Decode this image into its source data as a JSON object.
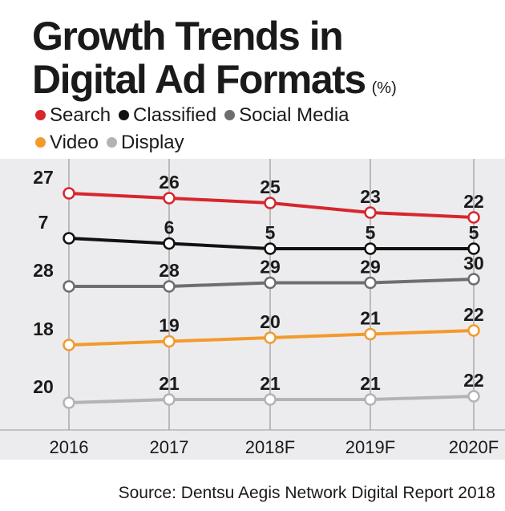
{
  "title_line1": "Growth Trends in",
  "title_line2": "Digital Ad Formats",
  "unit": "(%)",
  "source": "Source: Dentsu Aegis Network Digital Report 2018",
  "chart_data": {
    "type": "line",
    "title": "Growth Trends in Digital Ad Formats",
    "ylabel": "(%)",
    "categories": [
      "2016",
      "2017",
      "2018F",
      "2019F",
      "2020F"
    ],
    "series": [
      {
        "name": "Search",
        "color": "#d7262c",
        "values": [
          27,
          26,
          25,
          23,
          22
        ]
      },
      {
        "name": "Classified",
        "color": "#111111",
        "values": [
          7,
          6,
          5,
          5,
          5
        ]
      },
      {
        "name": "Social Media",
        "color": "#6e6e70",
        "values": [
          28,
          28,
          29,
          29,
          30
        ]
      },
      {
        "name": "Video",
        "color": "#f39a2c",
        "values": [
          18,
          19,
          20,
          21,
          22
        ]
      },
      {
        "name": "Display",
        "color": "#b3b3b5",
        "values": [
          20,
          21,
          21,
          21,
          22
        ]
      }
    ],
    "grid": "vertical",
    "legend_position": "top-left"
  }
}
